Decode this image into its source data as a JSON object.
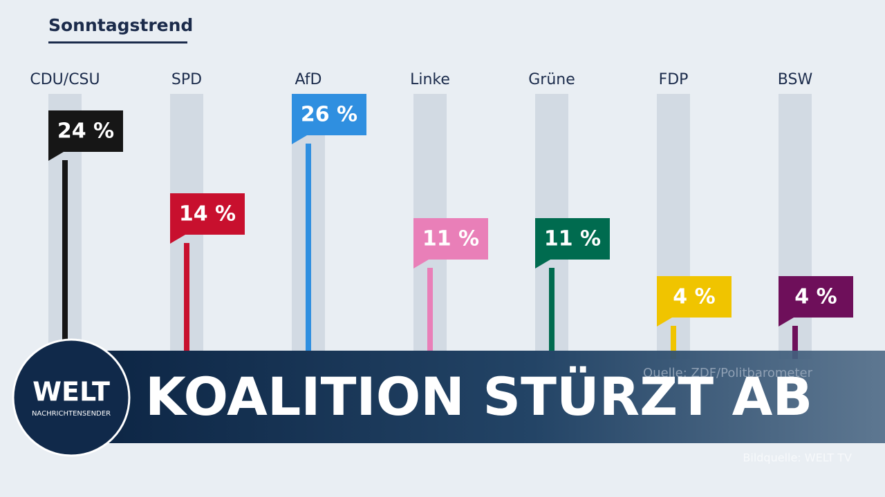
{
  "chart_data": {
    "type": "bar",
    "title": "Sonntagstrend",
    "categories": [
      "CDU/CSU",
      "SPD",
      "AfD",
      "Linke",
      "Grüne",
      "FDP",
      "BSW"
    ],
    "values": [
      24,
      14,
      26,
      11,
      11,
      4,
      4
    ],
    "value_labels": [
      "24 %",
      "14 %",
      "26 %",
      "11 %",
      "11 %",
      "4 %",
      "4 %"
    ],
    "colors": [
      "#161616",
      "#c8102e",
      "#2f8fe0",
      "#e97fb8",
      "#006b4f",
      "#f0c400",
      "#6e0f5a"
    ],
    "source": "Quelle: ZDF/Politbarometer"
  },
  "banner": {
    "logo": "WELT",
    "logo_subtitle": "NACHRICHTENSENDER",
    "headline": "KOALITION STÜRZT AB",
    "credit": "Bildquelle: WELT TV"
  }
}
